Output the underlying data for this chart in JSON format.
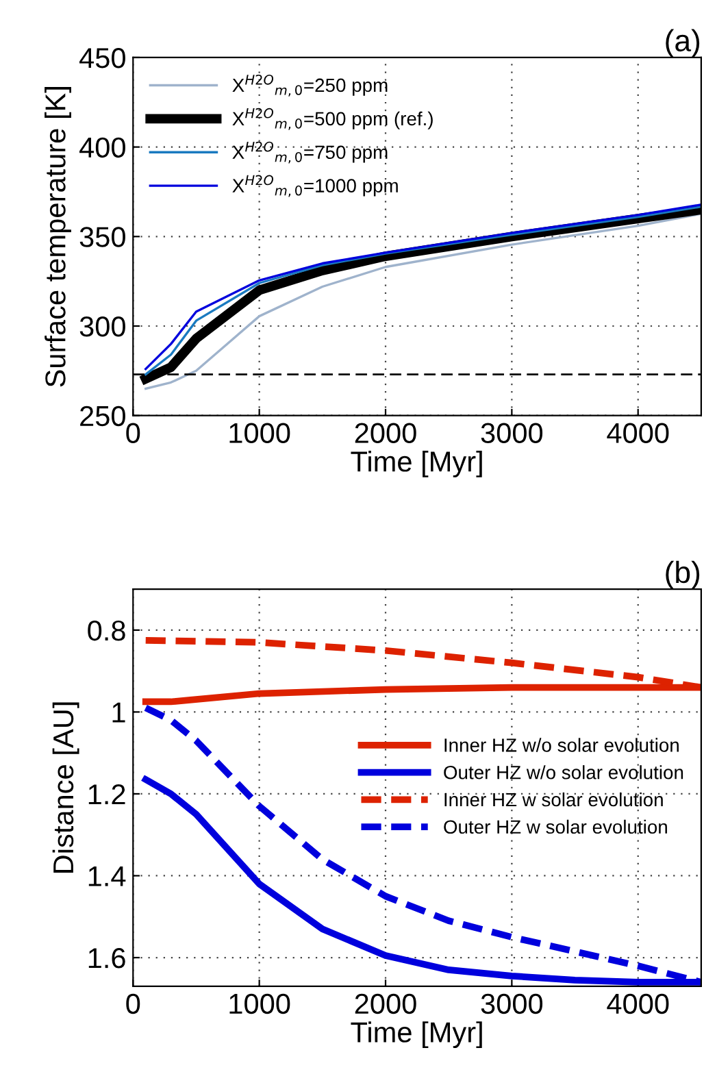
{
  "chart_data": [
    {
      "type": "line",
      "title": "(a)",
      "xlabel": "Time [Myr]",
      "ylabel": "Surface temperature [K]",
      "xlim": [
        0,
        4500
      ],
      "ylim": [
        250,
        450
      ],
      "xticks": [
        0,
        1000,
        2000,
        3000,
        4000
      ],
      "yticks": [
        250,
        300,
        350,
        400,
        450
      ],
      "grid": true,
      "legend": "top left",
      "x": [
        100,
        300,
        500,
        1000,
        1500,
        2000,
        3000,
        4000,
        4500
      ],
      "series": [
        {
          "name": "X$^{H2O}$$_{m,0}$=250 ppm",
          "color": "#9fb3cc",
          "line_style": "solid",
          "values": [
            265,
            268.5,
            275,
            305.5,
            322,
            333,
            345.5,
            356,
            362.7
          ]
        },
        {
          "name": "X$^{H2O}$$_{m,0}$=500 ppm (ref.)",
          "color": "#000000",
          "line_style": "solid",
          "values": [
            270.5,
            277,
            293,
            320,
            331,
            339,
            350,
            360,
            365
          ]
        },
        {
          "name": "X$^{H2O}$$_{m,0}$=750 ppm",
          "color": "#1a7ac0",
          "line_style": "solid",
          "values": [
            273,
            284,
            303,
            324,
            334,
            340.5,
            351,
            361,
            366.7
          ]
        },
        {
          "name": "X$^{H2O}$$_{m,0}$=1000 ppm",
          "color": "#0000dd",
          "line_style": "solid",
          "values": [
            276,
            290,
            308,
            325.5,
            335,
            341,
            352,
            362,
            367.8
          ]
        }
      ],
      "ref_lines": [
        {
          "axis": "y",
          "value": 273,
          "color": "#000000",
          "line_style": "dashed"
        }
      ]
    },
    {
      "type": "line",
      "title": "(b)",
      "xlabel": "Time [Myr]",
      "ylabel": "Distance [AU]",
      "xlim": [
        0,
        4500
      ],
      "ylim": [
        1.67,
        0.7
      ],
      "xticks": [
        0,
        1000,
        2000,
        3000,
        4000
      ],
      "yticks": [
        0.8,
        1,
        1.2,
        1.4,
        1.6
      ],
      "grid": true,
      "legend": "right",
      "series": [
        {
          "name": "Inner HZ w/o solar evolution",
          "color": "#dd2200",
          "line_style": "solid",
          "x": [
            100,
            300,
            1000,
            2000,
            3000,
            4500
          ],
          "values": [
            0.975,
            0.975,
            0.955,
            0.945,
            0.94,
            0.94
          ]
        },
        {
          "name": "Outer HZ w/o solar evolution",
          "color": "#0000dd",
          "line_style": "solid",
          "x": [
            100,
            300,
            500,
            1000,
            1500,
            2000,
            2500,
            3000,
            3500,
            4000,
            4500
          ],
          "values": [
            1.165,
            1.2,
            1.25,
            1.42,
            1.53,
            1.595,
            1.63,
            1.645,
            1.655,
            1.66,
            1.66
          ]
        },
        {
          "name": "Inner HZ w solar evolution",
          "color": "#dd2200",
          "line_style": "dashed",
          "x": [
            100,
            1000,
            2000,
            3000,
            4000,
            4500
          ],
          "values": [
            0.825,
            0.83,
            0.85,
            0.88,
            0.915,
            0.94
          ]
        },
        {
          "name": "Outer HZ w solar evolution",
          "color": "#0000dd",
          "line_style": "dashed",
          "x": [
            100,
            300,
            500,
            1000,
            1500,
            2000,
            2500,
            3000,
            4000,
            4500
          ],
          "values": [
            0.99,
            1.02,
            1.07,
            1.23,
            1.36,
            1.45,
            1.51,
            1.55,
            1.62,
            1.66
          ]
        }
      ]
    }
  ]
}
